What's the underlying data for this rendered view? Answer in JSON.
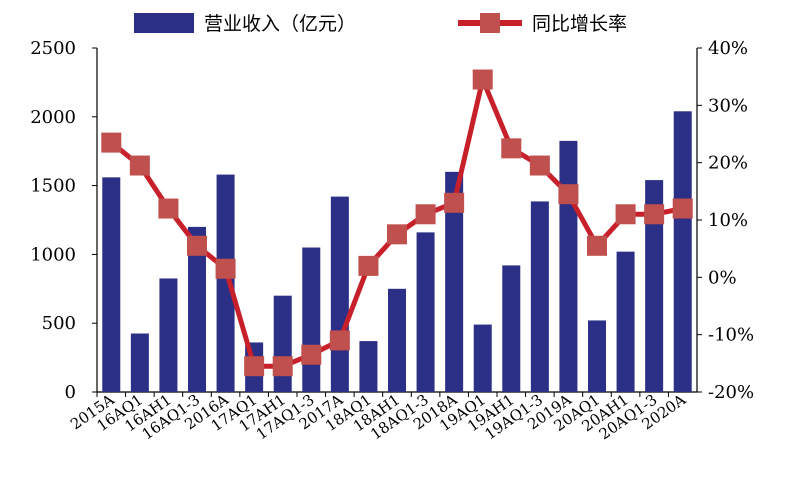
{
  "chart_data": {
    "type": "bar",
    "categories": [
      "2015A",
      "16AQ1",
      "16AH1",
      "16AQ1-3",
      "2016A",
      "17AQ1",
      "17AH1",
      "17AQ1-3",
      "2017A",
      "18AQ1",
      "18AH1",
      "18AQ1-3",
      "2018A",
      "19AQ1",
      "19AH1",
      "19AQ1-3",
      "2019A",
      "20AQ1",
      "20AH1",
      "20AQ1-3",
      "2020A"
    ],
    "series": [
      {
        "name": "营业收入（亿元）",
        "type": "bar",
        "axis": "left",
        "color": "#2b2f86",
        "values": [
          1560,
          425,
          825,
          1200,
          1580,
          360,
          700,
          1050,
          1420,
          370,
          750,
          1160,
          1600,
          490,
          920,
          1385,
          1825,
          520,
          1020,
          1540,
          2040
        ]
      },
      {
        "name": "同比增长率",
        "type": "line",
        "axis": "right",
        "color": "#c8202a",
        "marker_color": "#c0504d",
        "values": [
          23.5,
          19.5,
          12,
          5.5,
          1.5,
          -15.5,
          -15.5,
          -13.5,
          -11,
          2,
          7.5,
          11,
          13,
          34.5,
          22.5,
          19.5,
          14.5,
          5.5,
          11,
          11,
          12
        ]
      }
    ],
    "y_left": {
      "min": 0,
      "max": 2500,
      "ticks": [
        "0",
        "500",
        "1000",
        "1500",
        "2000",
        "2500"
      ]
    },
    "y_right": {
      "min": -20,
      "max": 40,
      "ticks": [
        "-20%",
        "-10%",
        "0%",
        "10%",
        "20%",
        "30%",
        "40%"
      ]
    },
    "legend": {
      "position": "top"
    },
    "grid": false
  }
}
